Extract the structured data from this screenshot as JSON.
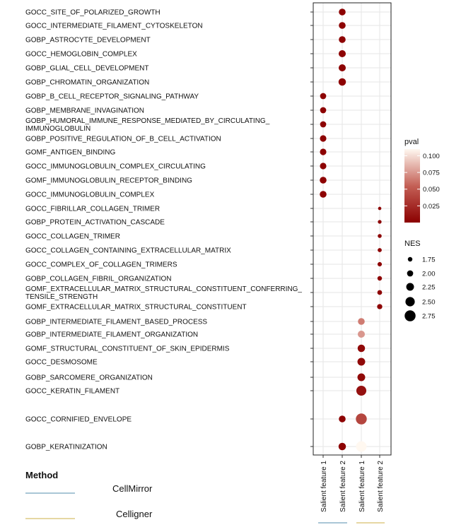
{
  "chart_data": {
    "type": "scatter",
    "subtype": "dot-plot",
    "x_categories": [
      "Salient feature 1",
      "Salient feature 2",
      "Salient feature 1",
      "Salient feature 2"
    ],
    "x_groups": [
      {
        "method": "CellMirror",
        "columns": [
          0,
          1
        ],
        "color": "#a9c6d6"
      },
      {
        "method": "Celligner",
        "columns": [
          2,
          3
        ],
        "color": "#e6d7a3"
      }
    ],
    "terms": [
      "GOCC_SITE_OF_POLARIZED_GROWTH",
      "GOCC_INTERMEDIATE_FILAMENT_CYTOSKELETON",
      "GOBP_ASTROCYTE_DEVELOPMENT",
      "GOCC_HEMOGLOBIN_COMPLEX",
      "GOBP_GLIAL_CELL_DEVELOPMENT",
      "GOBP_CHROMATIN_ORGANIZATION",
      "GOBP_B_CELL_RECEPTOR_SIGNALING_PATHWAY",
      "GOBP_MEMBRANE_INVAGINATION",
      "GOBP_HUMORAL_IMMUNE_RESPONSE_MEDIATED_BY_CIRCULATING_\nIMMUNOGLOBULIN",
      "GOBP_POSITIVE_REGULATION_OF_B_CELL_ACTIVATION",
      "GOMF_ANTIGEN_BINDING",
      "GOCC_IMMUNOGLOBULIN_COMPLEX_CIRCULATING",
      "GOMF_IMMUNOGLOBULIN_RECEPTOR_BINDING",
      "GOCC_IMMUNOGLOBULIN_COMPLEX",
      "GOCC_FIBRILLAR_COLLAGEN_TRIMER",
      "GOBP_PROTEIN_ACTIVATION_CASCADE",
      "GOCC_COLLAGEN_TRIMER",
      "GOCC_COLLAGEN_CONTAINING_EXTRACELLULAR_MATRIX",
      "GOCC_COMPLEX_OF_COLLAGEN_TRIMERS",
      "GOBP_COLLAGEN_FIBRIL_ORGANIZATION",
      "GOMF_EXTRACELLULAR_MATRIX_STRUCTURAL_CONSTITUENT_CONFERRING_\nTENSILE_STRENGTH",
      "GOMF_EXTRACELLULAR_MATRIX_STRUCTURAL_CONSTITUENT",
      "GOBP_INTERMEDIATE_FILAMENT_BASED_PROCESS",
      "GOBP_INTERMEDIATE_FILAMENT_ORGANIZATION",
      "GOMF_STRUCTURAL_CONSTITUENT_OF_SKIN_EPIDERMIS",
      "GOCC_DESMOSOME",
      "GOBP_SARCOMERE_ORGANIZATION",
      "GOCC_KERATIN_FILAMENT",
      "GOCC_CORNIFIED_ENVELOPE",
      "GOBP_KERATINIZATION"
    ],
    "points": [
      {
        "term": 0,
        "col": 1,
        "nes": 2.1,
        "pval": 0.002
      },
      {
        "term": 1,
        "col": 1,
        "nes": 2.1,
        "pval": 0.002
      },
      {
        "term": 2,
        "col": 1,
        "nes": 2.1,
        "pval": 0.002
      },
      {
        "term": 3,
        "col": 1,
        "nes": 2.15,
        "pval": 0.002
      },
      {
        "term": 4,
        "col": 1,
        "nes": 2.15,
        "pval": 0.002
      },
      {
        "term": 5,
        "col": 1,
        "nes": 2.2,
        "pval": 0.002
      },
      {
        "term": 6,
        "col": 0,
        "nes": 2.0,
        "pval": 0.002
      },
      {
        "term": 7,
        "col": 0,
        "nes": 2.0,
        "pval": 0.002
      },
      {
        "term": 8,
        "col": 0,
        "nes": 2.0,
        "pval": 0.002
      },
      {
        "term": 9,
        "col": 0,
        "nes": 2.05,
        "pval": 0.002
      },
      {
        "term": 10,
        "col": 0,
        "nes": 2.05,
        "pval": 0.002
      },
      {
        "term": 11,
        "col": 0,
        "nes": 2.05,
        "pval": 0.002
      },
      {
        "term": 12,
        "col": 0,
        "nes": 2.1,
        "pval": 0.002
      },
      {
        "term": 13,
        "col": 0,
        "nes": 2.1,
        "pval": 0.002
      },
      {
        "term": 14,
        "col": 3,
        "nes": 1.55,
        "pval": 0.002
      },
      {
        "term": 15,
        "col": 3,
        "nes": 1.62,
        "pval": 0.002
      },
      {
        "term": 16,
        "col": 3,
        "nes": 1.65,
        "pval": 0.002
      },
      {
        "term": 17,
        "col": 3,
        "nes": 1.68,
        "pval": 0.002
      },
      {
        "term": 18,
        "col": 3,
        "nes": 1.72,
        "pval": 0.002
      },
      {
        "term": 19,
        "col": 3,
        "nes": 1.75,
        "pval": 0.002
      },
      {
        "term": 20,
        "col": 3,
        "nes": 1.78,
        "pval": 0.002
      },
      {
        "term": 21,
        "col": 3,
        "nes": 1.85,
        "pval": 0.002
      },
      {
        "term": 22,
        "col": 2,
        "nes": 2.1,
        "pval": 0.065
      },
      {
        "term": 23,
        "col": 2,
        "nes": 2.15,
        "pval": 0.075
      },
      {
        "term": 24,
        "col": 2,
        "nes": 2.2,
        "pval": 0.005
      },
      {
        "term": 25,
        "col": 2,
        "nes": 2.25,
        "pval": 0.005
      },
      {
        "term": 26,
        "col": 2,
        "nes": 2.25,
        "pval": 0.005
      },
      {
        "term": 27,
        "col": 2,
        "nes": 2.6,
        "pval": 0.01
      },
      {
        "term": 28,
        "col": 1,
        "nes": 2.1,
        "pval": 0.002
      },
      {
        "term": 28,
        "col": 2,
        "nes": 2.75,
        "pval": 0.04
      },
      {
        "term": 29,
        "col": 1,
        "nes": 2.2,
        "pval": 0.002
      },
      {
        "term": 29,
        "col": 2,
        "nes": 2.7,
        "pval": 0.11
      }
    ],
    "legend_pval": {
      "title": "pval",
      "ticks": [
        0.1,
        0.075,
        0.05,
        0.025
      ],
      "tick_labels": [
        "0.100",
        "0.075",
        "0.050",
        "0.025"
      ],
      "range": [
        0.0,
        0.11
      ],
      "color_low": "#8b0000",
      "color_high": "#fff8f0"
    },
    "legend_nes": {
      "title": "NES",
      "values": [
        1.75,
        2.0,
        2.25,
        2.5,
        2.75
      ],
      "labels": [
        "1.75",
        "2.00",
        "2.25",
        "2.50",
        "2.75"
      ]
    },
    "method_legend": {
      "title": "Method",
      "items": [
        {
          "label": "CellMirror",
          "color": "#a9c6d6"
        },
        {
          "label": "Celligner",
          "color": "#e6d7a3"
        }
      ]
    },
    "grid": true,
    "legend_position": "right"
  }
}
